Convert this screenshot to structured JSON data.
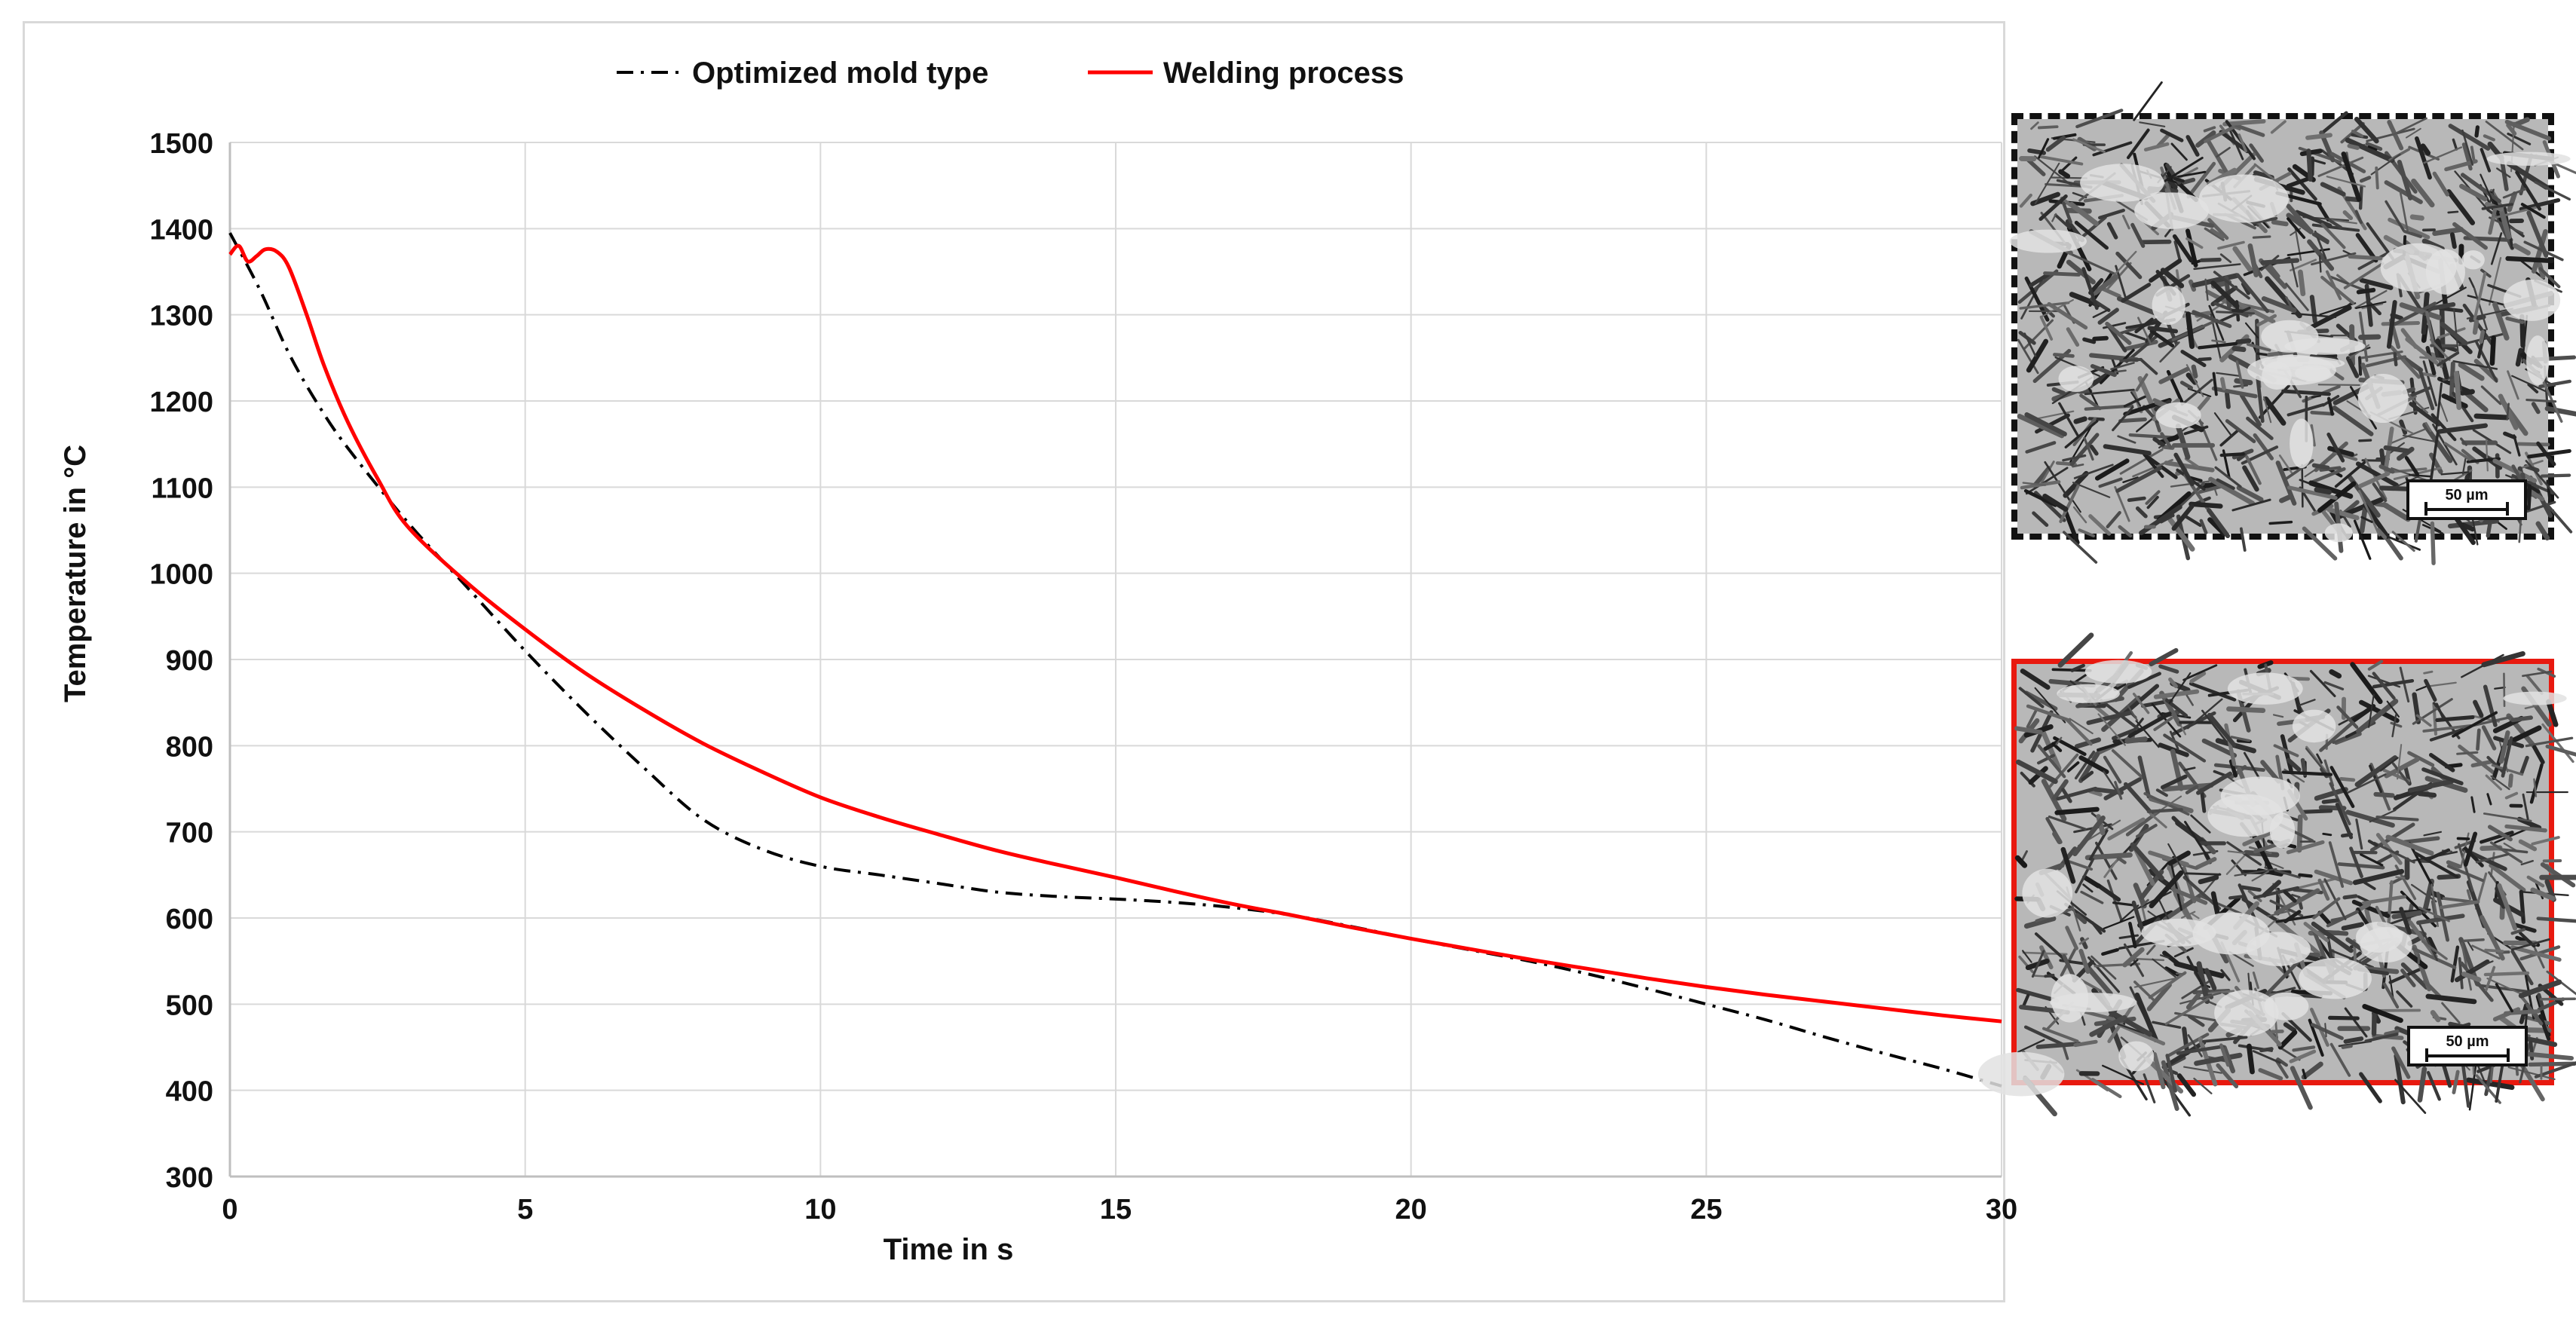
{
  "chart_data": {
    "type": "line",
    "xlabel": "Time in s",
    "ylabel": "Temperature in °C",
    "xlim": [
      0,
      30
    ],
    "ylim": [
      300,
      1500
    ],
    "xticks": [
      0,
      5,
      10,
      15,
      20,
      25,
      30
    ],
    "yticks": [
      300,
      400,
      500,
      600,
      700,
      800,
      900,
      1000,
      1100,
      1200,
      1300,
      1400,
      1500
    ],
    "grid": true,
    "legend_position": "top-center",
    "series": [
      {
        "name": "Optimized mold type",
        "color": "#000000",
        "style": "dash-dot",
        "x": [
          0,
          0.5,
          1,
          1.5,
          2,
          3,
          4,
          5,
          6,
          7,
          8,
          9,
          10,
          11,
          12,
          13,
          14,
          15,
          16,
          17,
          18,
          19,
          20,
          21,
          22,
          23,
          24,
          25,
          26,
          27,
          28,
          29,
          30
        ],
        "y": [
          1395,
          1330,
          1255,
          1195,
          1145,
          1060,
          985,
          910,
          840,
          775,
          715,
          680,
          660,
          650,
          640,
          630,
          625,
          622,
          618,
          612,
          603,
          590,
          576,
          563,
          550,
          535,
          518,
          500,
          482,
          462,
          443,
          425,
          405
        ]
      },
      {
        "name": "Welding process",
        "color": "#ff0000",
        "style": "solid",
        "x": [
          0,
          0.15,
          0.3,
          0.45,
          0.6,
          0.8,
          1,
          1.3,
          1.6,
          2,
          2.5,
          3,
          4,
          5,
          6,
          7,
          8,
          9,
          10,
          11,
          12,
          13,
          14,
          15,
          16,
          17,
          18,
          19,
          20,
          21,
          22,
          23,
          24,
          25,
          26,
          27,
          28,
          29,
          30
        ],
        "y": [
          1370,
          1380,
          1362,
          1368,
          1376,
          1373,
          1355,
          1300,
          1240,
          1175,
          1110,
          1055,
          990,
          935,
          885,
          842,
          803,
          770,
          740,
          717,
          697,
          678,
          662,
          647,
          631,
          616,
          603,
          589,
          576,
          564,
          552,
          541,
          530,
          520,
          511,
          503,
          495,
          487,
          480
        ]
      }
    ]
  },
  "micrographs": [
    {
      "frame": "dash-dot",
      "frame_color": "#000000",
      "scale_label": "50 µm"
    },
    {
      "frame": "solid",
      "frame_color": "#e8190f",
      "scale_label": "50 µm"
    }
  ]
}
